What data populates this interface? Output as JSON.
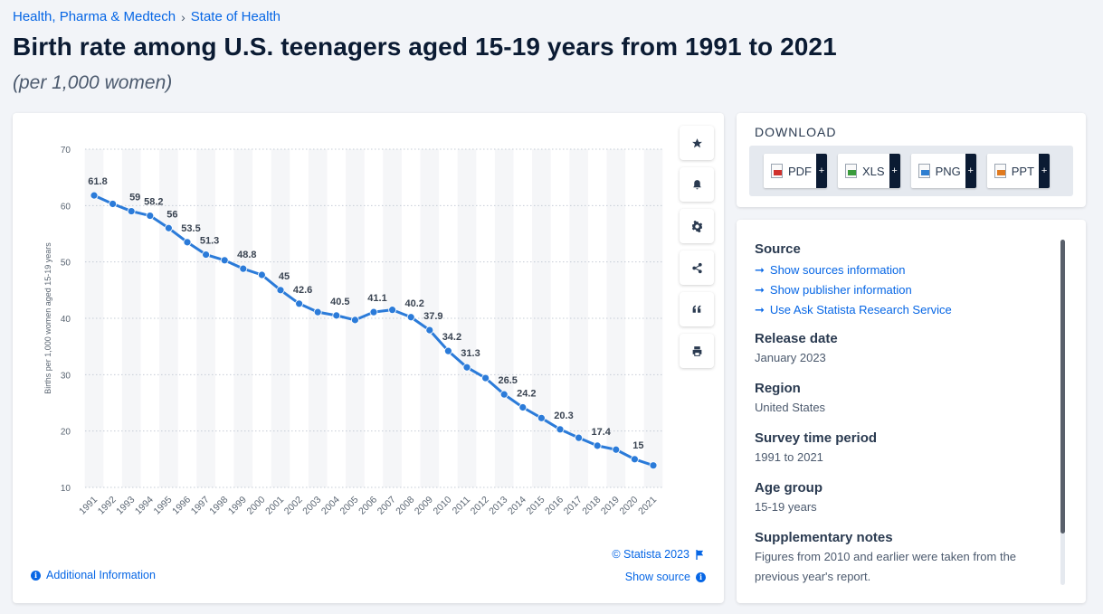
{
  "breadcrumb": {
    "parent": "Health, Pharma & Medtech",
    "separator": "›",
    "current": "State of Health"
  },
  "header": {
    "title": "Birth rate among U.S. teenagers aged 15-19 years from 1991 to 2021",
    "subtitle": "(per 1,000 women)"
  },
  "chart_footer": {
    "copyright": "© Statista 2023",
    "additional_info": "Additional Information",
    "show_source": "Show source"
  },
  "download": {
    "title": "DOWNLOAD",
    "buttons": [
      {
        "label": "PDF",
        "plus": "+"
      },
      {
        "label": "XLS",
        "plus": "+"
      },
      {
        "label": "PNG",
        "plus": "+"
      },
      {
        "label": "PPT",
        "plus": "+"
      }
    ]
  },
  "info": {
    "source_heading": "Source",
    "source_links": [
      "Show sources information",
      "Show publisher information",
      "Use Ask Statista Research Service"
    ],
    "release_heading": "Release date",
    "release_value": "January 2023",
    "region_heading": "Region",
    "region_value": "United States",
    "survey_heading": "Survey time period",
    "survey_value": "1991 to 2021",
    "age_heading": "Age group",
    "age_value": "15-19 years",
    "notes_heading": "Supplementary notes",
    "notes_value": "Figures from 2010 and earlier were taken from the previous year's report."
  },
  "colors": {
    "line": "#2b7bd9",
    "accent": "#0666e5",
    "dark": "#0b1b33"
  },
  "chart_data": {
    "type": "line",
    "title": "Birth rate among U.S. teenagers aged 15-19 years from 1991 to 2021",
    "xlabel": "",
    "ylabel": "Births per 1,000 women aged 15-19 years",
    "ylim": [
      10,
      70
    ],
    "yticks": [
      10,
      20,
      30,
      40,
      50,
      60,
      70
    ],
    "categories": [
      "1991",
      "1992",
      "1993",
      "1994",
      "1995",
      "1996",
      "1997",
      "1998",
      "1999",
      "2000",
      "2001",
      "2002",
      "2003",
      "2004",
      "2005",
      "2006",
      "2007",
      "2008",
      "2009",
      "2010",
      "2011",
      "2012",
      "2013",
      "2014",
      "2015",
      "2016",
      "2017",
      "2018",
      "2019",
      "2020",
      "2021"
    ],
    "series": [
      {
        "name": "Birth rate",
        "values": [
          61.8,
          60.3,
          59,
          58.2,
          56,
          53.5,
          51.3,
          50.3,
          48.8,
          47.7,
          45,
          42.6,
          41.1,
          40.5,
          39.7,
          41.1,
          41.5,
          40.2,
          37.9,
          34.2,
          31.3,
          29.4,
          26.5,
          24.2,
          22.3,
          20.3,
          18.8,
          17.4,
          16.7,
          15,
          13.9
        ]
      }
    ],
    "data_labels": {
      "1991": "61.8",
      "1993": "59",
      "1994": "58.2",
      "1995": "56",
      "1996": "53.5",
      "1997": "51.3",
      "1999": "48.8",
      "2001": "45",
      "2002": "42.6",
      "2004": "40.5",
      "2006": "41.1",
      "2008": "40.2",
      "2009": "37.9",
      "2010": "34.2",
      "2011": "31.3",
      "2013": "26.5",
      "2014": "24.2",
      "2016": "20.3",
      "2018": "17.4",
      "2020": "15"
    },
    "grid": true,
    "legend": "none"
  }
}
